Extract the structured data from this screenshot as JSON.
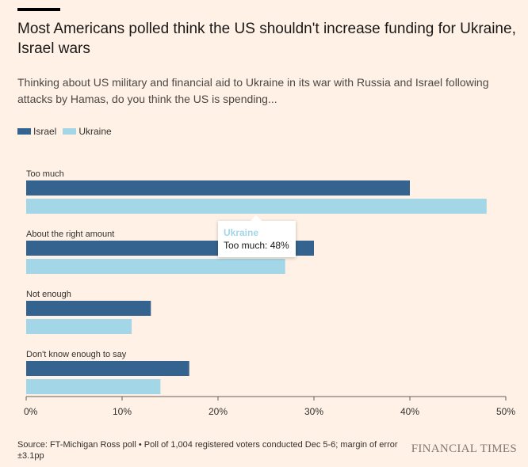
{
  "title": "Most Americans polled think the US shouldn't increase funding for Ukraine, Israel wars",
  "subtitle": "Thinking about US military and financial aid to Ukraine in its war with Russia and Israel following attacks by Hamas, do you think the US is spending...",
  "tooltip": {
    "series": "Ukraine",
    "text": "Too much: 48%"
  },
  "source": "Source: FT-Michigan Ross poll • Poll of 1,004 registered voters conducted Dec 5-6; margin of error ±3.1pp",
  "brand": "FINANCIAL TIMES",
  "chart_data": {
    "type": "bar",
    "orientation": "horizontal",
    "title": "Most Americans polled think the US shouldn't increase funding for Ukraine, Israel wars",
    "categories": [
      "Too much",
      "About the right amount",
      "Not enough",
      "Don't know enough to say"
    ],
    "series": [
      {
        "name": "Israel",
        "color": "#33638e",
        "values": [
          40,
          30,
          13,
          17
        ]
      },
      {
        "name": "Ukraine",
        "color": "#a3d6e6",
        "values": [
          48,
          27,
          11,
          14
        ]
      }
    ],
    "xlim": [
      0,
      50
    ],
    "xticks": [
      0,
      10,
      20,
      30,
      40,
      50
    ],
    "tick_suffix": "%",
    "xlabel": "",
    "ylabel": "",
    "legend": "top-left",
    "grid": false
  }
}
